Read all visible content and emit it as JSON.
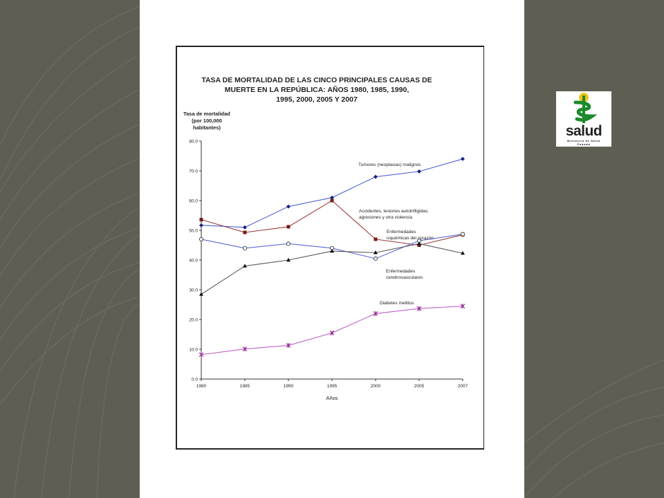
{
  "logo": {
    "text": "salud",
    "subtext_1": "Ministerio de Salud",
    "subtext_2": "Panamá"
  },
  "colors": {
    "background": "#5e5e52",
    "paper": "#ffffff",
    "logo_green": "#1a8a2a",
    "logo_yellow": "#f0c419"
  },
  "chart_data": {
    "type": "line",
    "title": "TASA DE MORTALIDAD DE LAS CINCO PRINCIPALES CAUSAS DE\nMUERTE EN LA REPÚBLICA:  AÑOS 1980, 1985, 1990,\n1995, 2000, 2005 Y 2007",
    "ylabel": "Tasa de mortalidad\n(por 100,000\nhabitantes)",
    "xlabel": "Años",
    "x": [
      "1980",
      "1985",
      "1990",
      "1995",
      "2000",
      "2005",
      "2007"
    ],
    "ylim": [
      0,
      80
    ],
    "yticks": [
      "0.0",
      "10.0",
      "20.0",
      "30.0",
      "40.0",
      "50.0",
      "60.0",
      "70.0",
      "80.0"
    ],
    "grid": false,
    "series": [
      {
        "name": "Tumores (neoplasias) malignos",
        "color": "#4a5ed0",
        "marker": "diamond",
        "values": [
          51.7,
          51.0,
          58.0,
          61.0,
          68.0,
          69.8,
          74.0
        ]
      },
      {
        "name": "Accidentes, lesiones autoinfligidas, agresiones y otra violencia",
        "color": "#9c3b3b",
        "marker": "square",
        "values": [
          53.6,
          49.3,
          51.2,
          60.0,
          47.0,
          45.0,
          48.5
        ]
      },
      {
        "name": "Enfermedades isquémicas del corazón",
        "color": "#5a66d8",
        "marker": "circle-open",
        "values": [
          47.0,
          44.0,
          45.5,
          44.0,
          40.5,
          46.5,
          48.7
        ]
      },
      {
        "name": "Enfermedades cerebrovasculares",
        "color": "#555555",
        "marker": "triangle",
        "values": [
          28.5,
          38.0,
          40.0,
          43.0,
          42.5,
          45.5,
          42.3
        ]
      },
      {
        "name": "Diabetes mellitus",
        "color": "#c060c8",
        "marker": "star",
        "values": [
          8.2,
          10.1,
          11.3,
          15.5,
          22.0,
          23.7,
          24.5
        ]
      }
    ],
    "annotations": [
      {
        "series": 0,
        "text": "Tumores (neoplasias) malignos"
      },
      {
        "series": 1,
        "text": "Accidentes, lesiones autoinfligidas,\nagresiones y otra violencia"
      },
      {
        "series": 2,
        "text": "Enfermedades\nisquémicas del corazón"
      },
      {
        "series": 3,
        "text": "Enfermedades\ncerebrovasculares"
      },
      {
        "series": 4,
        "text": "Diabetes mellitus"
      }
    ]
  }
}
